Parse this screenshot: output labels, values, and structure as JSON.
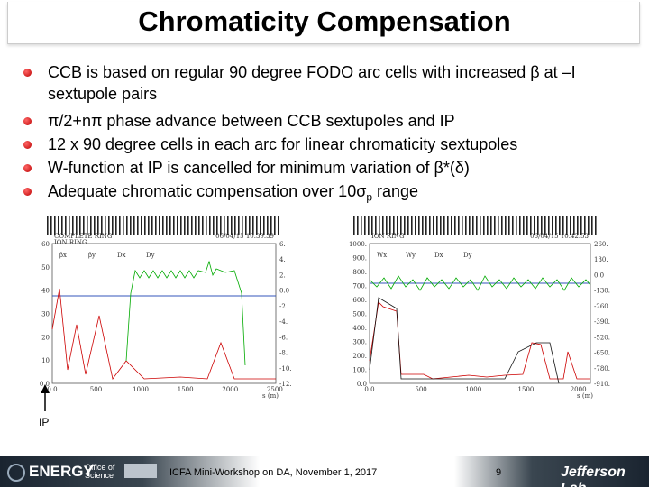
{
  "title": "Chromaticity Compensation",
  "bullets": [
    "CCB is based on regular 90 degree FODO arc cells with increased β at –I sextupole pairs",
    "π/2+nπ phase advance between CCB sextupoles and IP",
    "12 x 90 degree cells in each arc for linear chromaticity sextupoles",
    "W-function at IP is cancelled for minimum variation of β*(δ)",
    {
      "text": "Adequate chromatic compensation over 10σ",
      "sub": "p",
      "tail": " range"
    }
  ],
  "plots": [
    {
      "header": [
        "COMPLETE RING",
        "ION RING"
      ],
      "stamp": "06/04/15 10.39.39",
      "yticks": [
        "60",
        "50",
        "40",
        "30",
        "20",
        "10",
        "0.0"
      ],
      "y2ticks": [
        "6.",
        "4.",
        "2.",
        "0.0",
        "-2.",
        "-4.",
        "-6.",
        "-8.",
        "-10.",
        "-12."
      ],
      "xticks": [
        "0.0",
        "500.",
        "1000.",
        "1500.",
        "2000.",
        "2500."
      ],
      "xlabel": "s (m)",
      "legend": [
        "βx",
        "βy",
        "Dx",
        "Dy"
      ]
    },
    {
      "header": [
        "ION RING"
      ],
      "stamp": "06/04/15 10.42.53",
      "yticks": [
        "1000.",
        "900.",
        "800.",
        "700.",
        "600.",
        "500.",
        "400.",
        "300.",
        "200.",
        "100.",
        "0.0"
      ],
      "y2ticks": [
        "260.",
        "130.",
        "0.0",
        "-130.",
        "-260.",
        "-390.",
        "-520.",
        "-650.",
        "-780.",
        "-910."
      ],
      "xticks": [
        "0.0",
        "500.",
        "1000.",
        "1500.",
        "2000."
      ],
      "xlabel": "s (m)",
      "legend": [
        "Wx",
        "Wy",
        "Dx",
        "Dy"
      ]
    }
  ],
  "ip_label": "IP",
  "footer": {
    "doe": "ENERGY",
    "office": "Office of Science",
    "workshop": "ICFA Mini-Workshop on DA, November 1, 2017",
    "page": "9",
    "lab": "Jefferson Lab"
  }
}
